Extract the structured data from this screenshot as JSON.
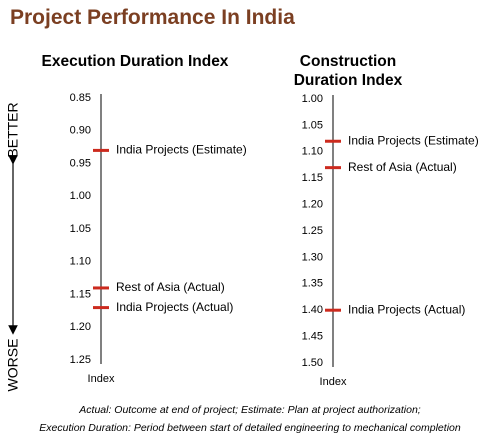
{
  "title": "Project Performance In India",
  "annotations": {
    "better": "BETTER",
    "worse": "WORSE"
  },
  "footnotes": [
    "Actual: Outcome at end of project; Estimate: Plan at project authorization;",
    "Execution Duration: Period between start of detailed engineering to mechanical completion"
  ],
  "chart_data": [
    {
      "type": "marker",
      "title": "Execution Duration Index",
      "x_label": "Index",
      "color": "#cc2a1e",
      "y_inverted": true,
      "categories": [
        "India Projects (Estimate)",
        "Rest of Asia (Actual)",
        "India Projects (Actual)"
      ],
      "values": [
        0.93,
        1.14,
        1.17
      ],
      "ylim": [
        0.85,
        1.25
      ],
      "yticks": [
        0.85,
        {
          "value": 0.9,
          "label": "0.90"
        },
        0.95,
        {
          "value": 1.0,
          "label": "1.00"
        },
        1.05,
        {
          "value": 1.1,
          "label": "1.10"
        },
        1.15,
        {
          "value": 1.2,
          "label": "1.20"
        },
        1.25
      ]
    },
    {
      "type": "marker",
      "title": "Construction Duration Index",
      "x_label": "Index",
      "color": "#cc2a1e",
      "y_inverted": true,
      "categories": [
        "India Projects (Estimate)",
        "Rest of Asia (Actual)",
        "India Projects (Actual)"
      ],
      "values": [
        1.08,
        1.13,
        1.4
      ],
      "ylim": [
        1.0,
        1.5
      ],
      "yticks": [
        {
          "value": 1.0,
          "label": "1.00"
        },
        1.05,
        {
          "value": 1.1,
          "label": "1.10"
        },
        1.15,
        {
          "value": 1.2,
          "label": "1.20"
        },
        1.25,
        {
          "value": 1.3,
          "label": "1.30"
        },
        1.35,
        {
          "value": 1.4,
          "label": "1.40"
        },
        1.45,
        {
          "value": 1.5,
          "label": "1.50"
        }
      ]
    }
  ]
}
